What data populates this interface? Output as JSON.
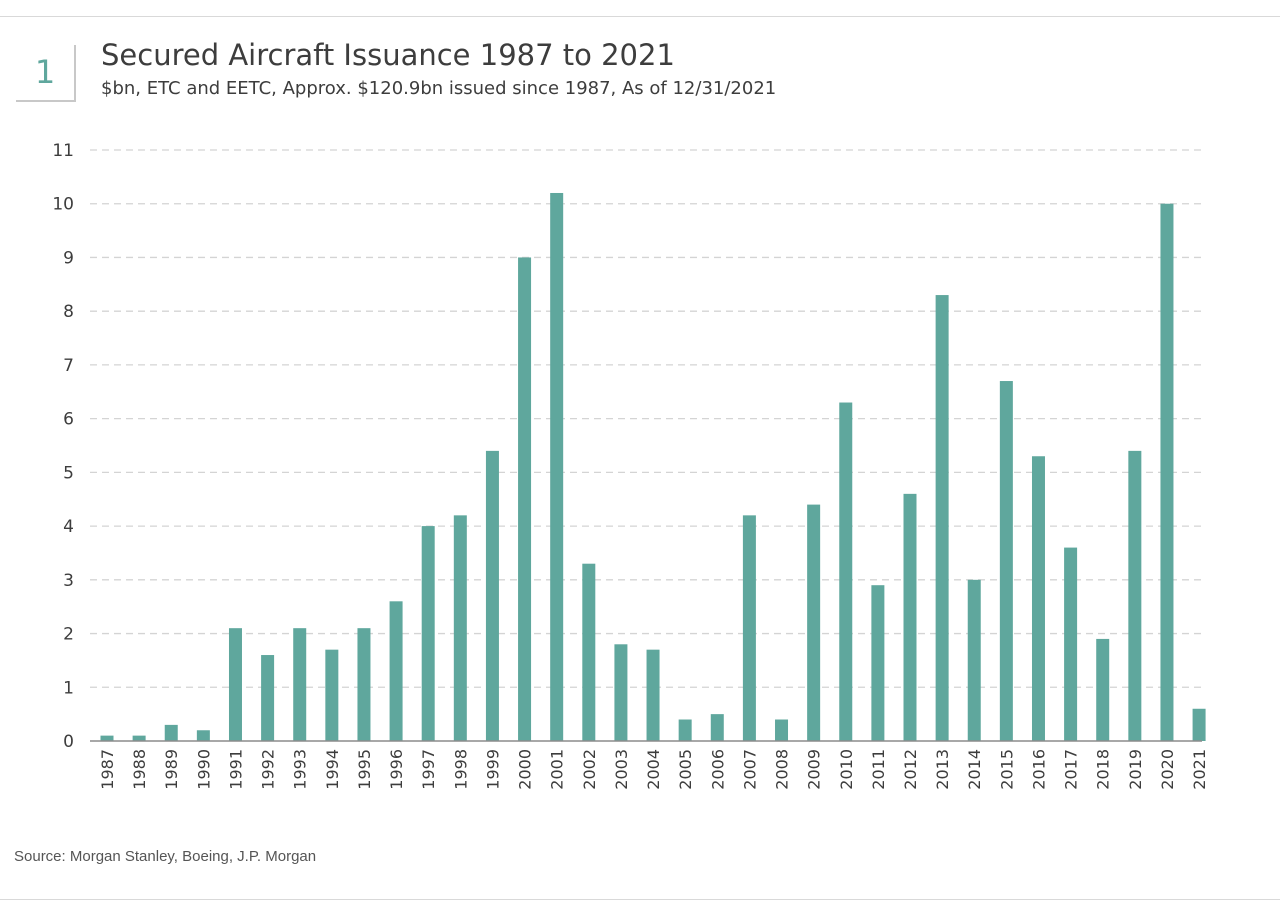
{
  "badge": {
    "number": "1"
  },
  "header": {
    "title": "Secured Aircraft Issuance 1987 to 2021",
    "subtitle": "$bn, ETC and EETC, Approx. $120.9bn issued since 1987, As of 12/31/2021"
  },
  "footer": {
    "source": "Source: Morgan Stanley, Boeing, J.P. Morgan"
  },
  "colors": {
    "bar": "#5fa79d",
    "grid": "#d4d4d4",
    "axis": "#8c8c8c",
    "accent": "#5fa79d"
  },
  "chart_data": {
    "type": "bar",
    "title": "Secured Aircraft Issuance 1987 to 2021",
    "xlabel": "",
    "ylabel": "$bn",
    "ylim": [
      0,
      11
    ],
    "yticks": [
      "0",
      "1",
      "2",
      "3",
      "4",
      "5",
      "6",
      "7",
      "8",
      "9",
      "10",
      "11"
    ],
    "grid": true,
    "categories": [
      "1987",
      "1988",
      "1989",
      "1990",
      "1991",
      "1992",
      "1993",
      "1994",
      "1995",
      "1996",
      "1997",
      "1998",
      "1999",
      "2000",
      "2001",
      "2002",
      "2003",
      "2004",
      "2005",
      "2006",
      "2007",
      "2008",
      "2009",
      "2010",
      "2011",
      "2012",
      "2013",
      "2014",
      "2015",
      "2016",
      "2017",
      "2018",
      "2019",
      "2020",
      "2021"
    ],
    "values": [
      0.1,
      0.1,
      0.3,
      0.2,
      2.1,
      1.6,
      2.1,
      1.7,
      2.1,
      2.6,
      4.0,
      4.2,
      5.4,
      9.0,
      10.2,
      3.3,
      1.8,
      1.7,
      0.4,
      0.5,
      4.2,
      0.4,
      4.4,
      6.3,
      2.9,
      4.6,
      8.3,
      3.0,
      6.7,
      5.3,
      3.6,
      1.9,
      5.4,
      10.0,
      0.6
    ]
  }
}
